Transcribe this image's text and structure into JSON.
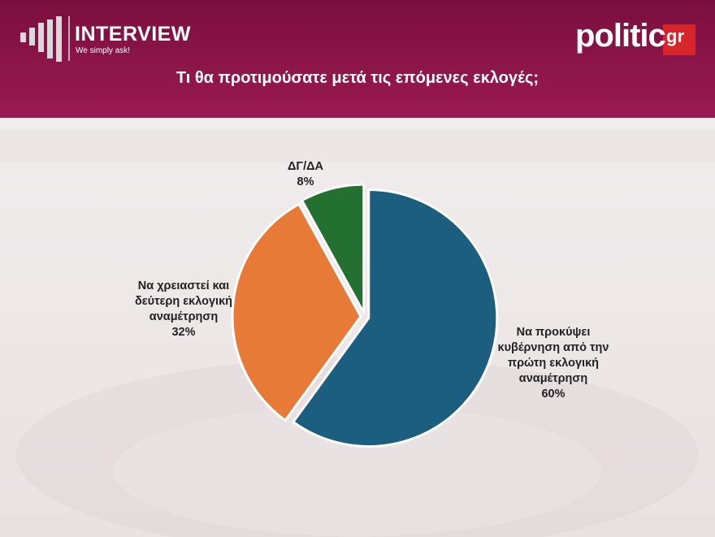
{
  "header": {
    "brand": "INTERVIEW",
    "tagline": "We simply ask!",
    "logo": "politic",
    "logo_suffix": "gr"
  },
  "chart_data": {
    "type": "pie",
    "title": "Τι θα προτιμούσατε μετά τις επόμενες εκλογές;",
    "categories": [
      "Να προκύψει κυβέρνηση από την πρώτη εκλογική αναμέτρηση",
      "Να χρειαστεί και δεύτερη εκλογική αναμέτρηση",
      "ΔΓ/ΔΑ"
    ],
    "values": [
      60,
      32,
      8
    ],
    "value_labels": [
      "60%",
      "32%",
      "8%"
    ],
    "colors": [
      "#1b5e80",
      "#e87a37",
      "#237031"
    ]
  }
}
